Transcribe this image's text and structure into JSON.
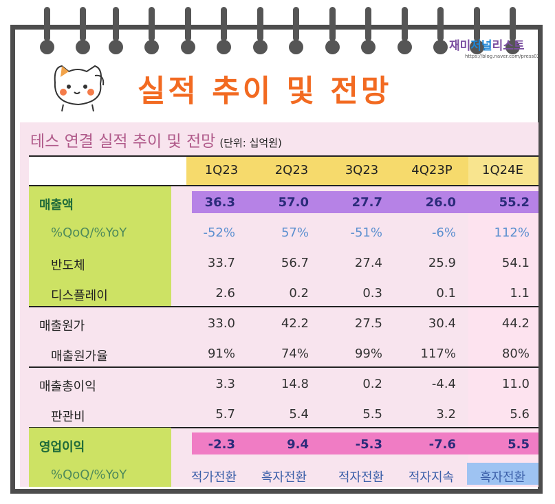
{
  "title": "실적 추이 및 전망",
  "logo": {
    "part1": "재미",
    "part2": "저널",
    "part3": "리스트",
    "url": "https://blog.naver.com/press02"
  },
  "subtitle": "테스 연결 실적 추이 및 전망",
  "unit": "(단위: 십억원)",
  "columns": [
    "1Q23",
    "2Q23",
    "3Q23",
    "4Q23P",
    "1Q24E"
  ],
  "rows": [
    {
      "label": "매출액",
      "values": [
        "36.3",
        "57.0",
        "27.7",
        "26.0",
        "55.2"
      ]
    },
    {
      "label": "%QoQ/%YoY",
      "values": [
        "-52%",
        "57%",
        "-51%",
        "-6%",
        "112%"
      ]
    },
    {
      "label": "반도체",
      "values": [
        "33.7",
        "56.7",
        "27.4",
        "25.9",
        "54.1"
      ]
    },
    {
      "label": "디스플레이",
      "values": [
        "2.6",
        "0.2",
        "0.3",
        "0.1",
        "1.1"
      ]
    },
    {
      "label": "매출원가",
      "values": [
        "33.0",
        "42.2",
        "27.5",
        "30.4",
        "44.2"
      ]
    },
    {
      "label": "매출원가율",
      "values": [
        "91%",
        "74%",
        "99%",
        "117%",
        "80%"
      ]
    },
    {
      "label": "매출총이익",
      "values": [
        "3.3",
        "14.8",
        "0.2",
        "-4.4",
        "11.0"
      ]
    },
    {
      "label": "판관비",
      "values": [
        "5.7",
        "5.4",
        "5.5",
        "3.2",
        "5.6"
      ]
    },
    {
      "label": "영업이익",
      "values": [
        "-2.3",
        "9.4",
        "-5.3",
        "-7.6",
        "5.5"
      ]
    },
    {
      "label": "%QoQ/%YoY",
      "values": [
        "적가전환",
        "흑자전환",
        "적자전환",
        "적자지속",
        "흑자전환"
      ]
    }
  ],
  "colors": {
    "accent": "#f26a21",
    "header_yellow": "#f6da6c",
    "purple_band": "#b682e6",
    "pink_band": "#f07cc4",
    "label_green": "#cde264"
  }
}
